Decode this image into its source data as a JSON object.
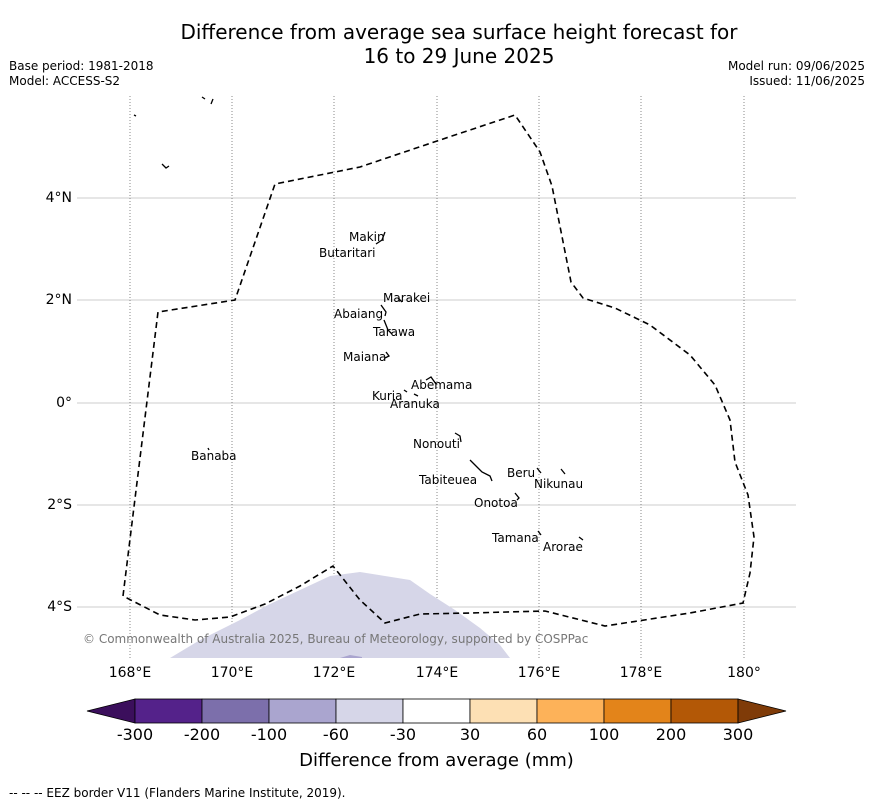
{
  "title": {
    "line1": "Difference from average sea surface height forecast for",
    "line2": "16 to 29 June 2025"
  },
  "meta_left": {
    "base_period": "Base period: 1981-2018",
    "model": "Model: ACCESS-S2"
  },
  "meta_right": {
    "model_run": "Model run: 09/06/2025",
    "issued": "Issued: 11/06/2025"
  },
  "map": {
    "lon_labels": [
      "168°E",
      "170°E",
      "172°E",
      "174°E",
      "176°E",
      "178°E",
      "180°"
    ],
    "lat_labels": [
      "4°N",
      "2°N",
      "0°",
      "2°S",
      "4°S"
    ],
    "places": [
      "Makin",
      "Butaritari",
      "Marakei",
      "Abaiang",
      "Tarawa",
      "Maiana",
      "Abemama",
      "Kuria",
      "Aranuka",
      "Nonouti",
      "Banaba",
      "Tabiteuea",
      "Beru",
      "Nikunau",
      "Onotoa",
      "Tamana",
      "Arorae"
    ],
    "anomaly_fill_color": "#d6d6e8",
    "eez_line_style": "dashed"
  },
  "copyright": "© Commonwealth of Australia 2025, Bureau of Meteorology, supported by COSPPac",
  "colorbar": {
    "ticks": [
      "-300",
      "-200",
      "-100",
      "-60",
      "-30",
      "30",
      "60",
      "100",
      "200",
      "300"
    ],
    "colors": [
      "#3b0f5c",
      "#54228a",
      "#7c6fab",
      "#aaa5cf",
      "#d6d6e8",
      "#ffffff",
      "#fde0b4",
      "#fdb259",
      "#e3841a",
      "#b35806",
      "#7f3b08"
    ],
    "label": "Difference from average (mm)"
  },
  "footnote": "--  --  -- EEZ border V11 (Flanders Marine Institute, 2019)."
}
